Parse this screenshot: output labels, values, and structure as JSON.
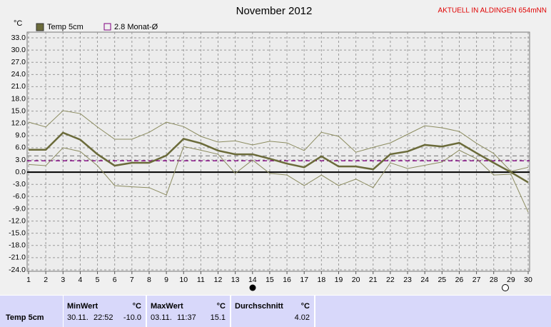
{
  "chart_data": {
    "type": "line",
    "title": "November 2012",
    "subtitle": "AKTUELL IN ALDINGEN 654mNN",
    "y_unit": "°C",
    "x": [
      1,
      2,
      3,
      4,
      5,
      6,
      7,
      8,
      9,
      10,
      11,
      12,
      13,
      14,
      15,
      16,
      17,
      18,
      19,
      20,
      21,
      22,
      23,
      24,
      25,
      26,
      27,
      28,
      29,
      30
    ],
    "xlim": [
      1,
      30
    ],
    "xticks": [
      1,
      2,
      3,
      4,
      5,
      6,
      7,
      8,
      9,
      10,
      11,
      12,
      13,
      14,
      15,
      16,
      17,
      18,
      19,
      20,
      21,
      22,
      23,
      24,
      25,
      26,
      27,
      28,
      29,
      30
    ],
    "ylim": [
      -24,
      33
    ],
    "yticks": [
      {
        "value": 33,
        "label": "33.0"
      },
      {
        "value": 30,
        "label": "30.0"
      },
      {
        "value": 27,
        "label": "27.0"
      },
      {
        "value": 24,
        "label": "24.0"
      },
      {
        "value": 21,
        "label": "21.0"
      },
      {
        "value": 18,
        "label": "18.0"
      },
      {
        "value": 15,
        "label": "15.0"
      },
      {
        "value": 12,
        "label": "12.0"
      },
      {
        "value": 9,
        "label": "9.0"
      },
      {
        "value": 6,
        "label": "6.0"
      },
      {
        "value": 3,
        "label": "3.0"
      },
      {
        "value": 0,
        "label": "0.0"
      },
      {
        "value": -3,
        "label": "-3.0"
      },
      {
        "value": -6,
        "label": "-6.0"
      },
      {
        "value": -9,
        "label": "-9.0"
      },
      {
        "value": -12,
        "label": "-12.0"
      },
      {
        "value": -15,
        "label": "-15.0"
      },
      {
        "value": -18,
        "label": "-18.0"
      },
      {
        "value": -21,
        "label": "-21.0"
      },
      {
        "value": -24,
        "label": "-24.0"
      }
    ],
    "grid": true,
    "series": [
      {
        "name": "Temp 5cm",
        "color": "#6b6b3a",
        "width": 2.5,
        "values": [
          5.5,
          5.5,
          9.7,
          8.0,
          4.4,
          1.6,
          2.3,
          2.3,
          4.1,
          8.2,
          7.1,
          5.3,
          4.4,
          4.4,
          3.3,
          2.1,
          1.2,
          3.9,
          1.4,
          1.4,
          0.7,
          4.4,
          5.1,
          6.7,
          6.3,
          7.2,
          4.7,
          2.3,
          0.0,
          -2.5
        ]
      },
      {
        "color": "#8c8c60",
        "width": 1,
        "values": [
          12.3,
          11.1,
          15.1,
          14.4,
          11.1,
          8.1,
          8.1,
          9.8,
          12.3,
          11.2,
          8.8,
          7.4,
          7.7,
          6.7,
          7.6,
          7.2,
          5.3,
          9.8,
          8.8,
          4.9,
          6.1,
          7.2,
          9.3,
          11.4,
          10.9,
          10.0,
          7.1,
          4.6,
          0.2,
          1.2
        ]
      },
      {
        "color": "#8c8c60",
        "width": 1,
        "values": [
          1.9,
          1.6,
          6.0,
          5.1,
          1.6,
          -3.3,
          -3.6,
          -3.8,
          -5.6,
          6.3,
          5.4,
          4.4,
          -0.3,
          3.0,
          -0.3,
          -0.7,
          -3.3,
          -0.7,
          -3.3,
          -1.7,
          -3.8,
          2.3,
          0.9,
          1.7,
          2.5,
          5.4,
          3.3,
          -0.7,
          -0.5,
          -9.8
        ]
      }
    ],
    "reference_lines": [
      {
        "label": "2.8 Monat-Ø",
        "value": 2.8,
        "color": "#800080"
      },
      {
        "value": 4.0,
        "color": "#8a8a8a"
      }
    ]
  },
  "table": {
    "row_label": "Temp 5cm",
    "columns": [
      {
        "header": "MinWert",
        "unit": "°C",
        "date": "30.11.",
        "time": "22:52",
        "value": "-10.0"
      },
      {
        "header": "MaxWert",
        "unit": "°C",
        "date": "03.11.",
        "time": "11:37",
        "value": "15.1"
      },
      {
        "header": "Durchschnitt",
        "unit": "°C",
        "value": "4.02"
      }
    ]
  }
}
